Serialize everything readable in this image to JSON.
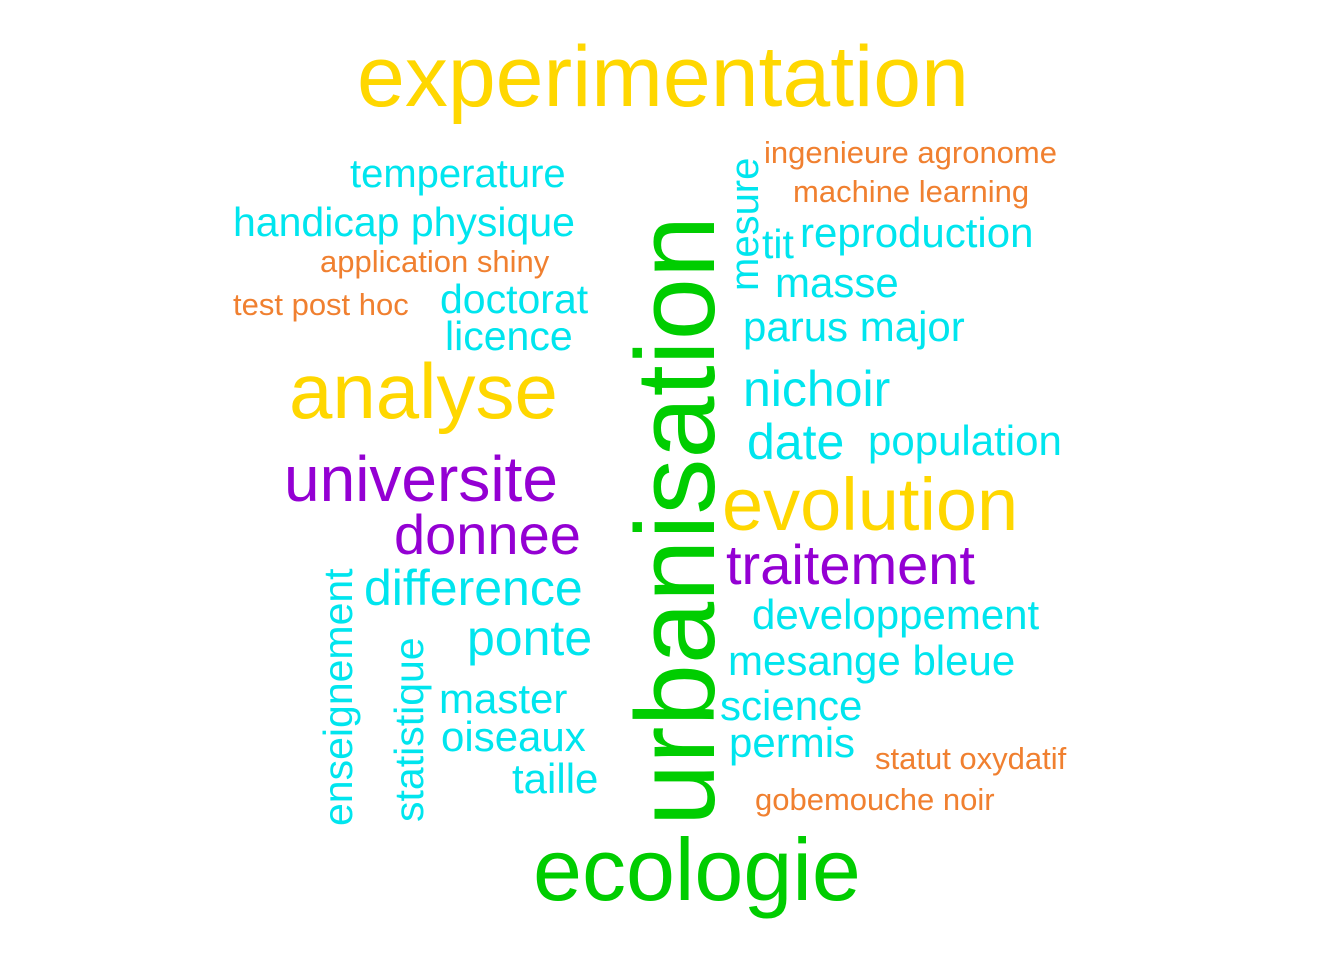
{
  "colors": {
    "yellow": "#FFD700",
    "green": "#00CD00",
    "purple": "#9400D3",
    "cyan": "#00E5EE",
    "orange": "#F08030"
  },
  "words": {
    "experimentation": "experimentation",
    "urbanisation": "urbanisation",
    "ecologie": "ecologie",
    "analyse": "analyse",
    "evolution": "evolution",
    "universite": "universite",
    "donnee": "donnee",
    "traitement": "traitement",
    "temperature": "temperature",
    "handicap_physique": "handicap physique",
    "application_shiny": "application shiny",
    "test_post_hoc": "test post hoc",
    "doctorat": "doctorat",
    "licence": "licence",
    "ingenieure_agronome": "ingenieure agronome",
    "machine_learning": "machine learning",
    "mesure": "mesure",
    "tit": "tit",
    "reproduction": "reproduction",
    "masse": "masse",
    "parus_major": "parus major",
    "nichoir": "nichoir",
    "date": "date",
    "population": "population",
    "difference": "difference",
    "ponte": "ponte",
    "enseignement": "enseignement",
    "statistique": "statistique",
    "master": "master",
    "oiseaux": "oiseaux",
    "taille": "taille",
    "developpement": "developpement",
    "mesange_bleue": "mesange bleue",
    "science": "science",
    "permis": "permis",
    "statut_oxydatif": "statut oxydatif",
    "gobemouche_noir": "gobemouche noir"
  }
}
